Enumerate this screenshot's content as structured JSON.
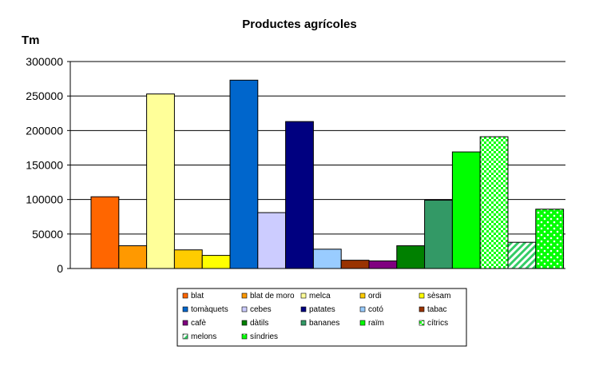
{
  "chart_data": {
    "type": "bar",
    "title": "Productes agrícoles",
    "ylabel": "Tm",
    "xlabel": "",
    "ylim": [
      0,
      300000
    ],
    "yticks": [
      0,
      50000,
      100000,
      150000,
      200000,
      250000,
      300000
    ],
    "ytick_labels": [
      "0",
      "50000",
      "100000",
      "150000",
      "200000",
      "250000",
      "300000"
    ],
    "grid": true,
    "legend_position": "bottom",
    "series": [
      {
        "name": "blat",
        "value": 104000,
        "color": "#FF6600",
        "pattern": "solid"
      },
      {
        "name": "blat de moro",
        "value": 33000,
        "color": "#FF9900",
        "pattern": "solid"
      },
      {
        "name": "melca",
        "value": 253000,
        "color": "#FFFF99",
        "pattern": "solid"
      },
      {
        "name": "ordi",
        "value": 27000,
        "color": "#FFCC00",
        "pattern": "solid"
      },
      {
        "name": "sèsam",
        "value": 19000,
        "color": "#FFFF00",
        "pattern": "solid"
      },
      {
        "name": "tomàquets",
        "value": 273000,
        "color": "#0066CC",
        "pattern": "solid"
      },
      {
        "name": "cebes",
        "value": 81000,
        "color": "#CCCCFF",
        "pattern": "solid"
      },
      {
        "name": "patates",
        "value": 213000,
        "color": "#000080",
        "pattern": "solid"
      },
      {
        "name": "cotó",
        "value": 28000,
        "color": "#99CCFF",
        "pattern": "solid"
      },
      {
        "name": "tabac",
        "value": 12000,
        "color": "#993300",
        "pattern": "solid"
      },
      {
        "name": "cafè",
        "value": 11000,
        "color": "#800080",
        "pattern": "solid"
      },
      {
        "name": "dàtils",
        "value": 33000,
        "color": "#008000",
        "pattern": "solid"
      },
      {
        "name": "bananes",
        "value": 99000,
        "color": "#339966",
        "pattern": "solid"
      },
      {
        "name": "raïm",
        "value": 169000,
        "color": "#00FF00",
        "pattern": "solid"
      },
      {
        "name": "cítrics",
        "value": 191000,
        "color": "#00FF00",
        "pattern": "checker"
      },
      {
        "name": "melons",
        "value": 38000,
        "color": "#33CC66",
        "pattern": "diagonal"
      },
      {
        "name": "síndries",
        "value": 86000,
        "color": "#00FF00",
        "pattern": "bubbles"
      }
    ]
  }
}
